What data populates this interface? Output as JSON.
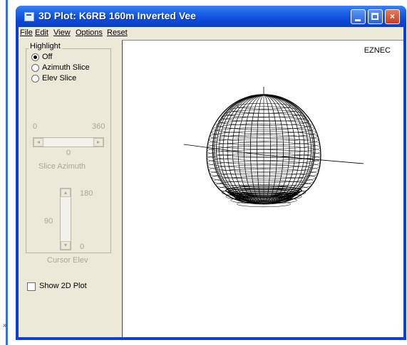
{
  "window": {
    "title": "3D Plot: K6RB 160m Inverted Vee",
    "buttons": {
      "minimize": "minimize",
      "maximize": "maximize",
      "close": "×"
    }
  },
  "menubar": {
    "items": [
      "File",
      "Edit",
      "View",
      "Options",
      "Reset"
    ]
  },
  "highlight": {
    "label": "Highlight",
    "options": [
      {
        "label": "Off",
        "selected": true
      },
      {
        "label": "Azimuth Slice",
        "selected": false
      },
      {
        "label": "Elev Slice",
        "selected": false
      }
    ]
  },
  "slice_azimuth": {
    "min_label": "0",
    "max_label": "360",
    "value": "0",
    "caption": "Slice Azimuth"
  },
  "cursor_elev": {
    "top_label": "180",
    "mid_label": "90",
    "bottom_label": "0",
    "caption": "Cursor Elev"
  },
  "show_2d": {
    "label": "Show 2D Plot",
    "checked": false
  },
  "plot": {
    "brand": "EZNEC",
    "wire_color": "#000000"
  },
  "left_edge_mark": "»"
}
